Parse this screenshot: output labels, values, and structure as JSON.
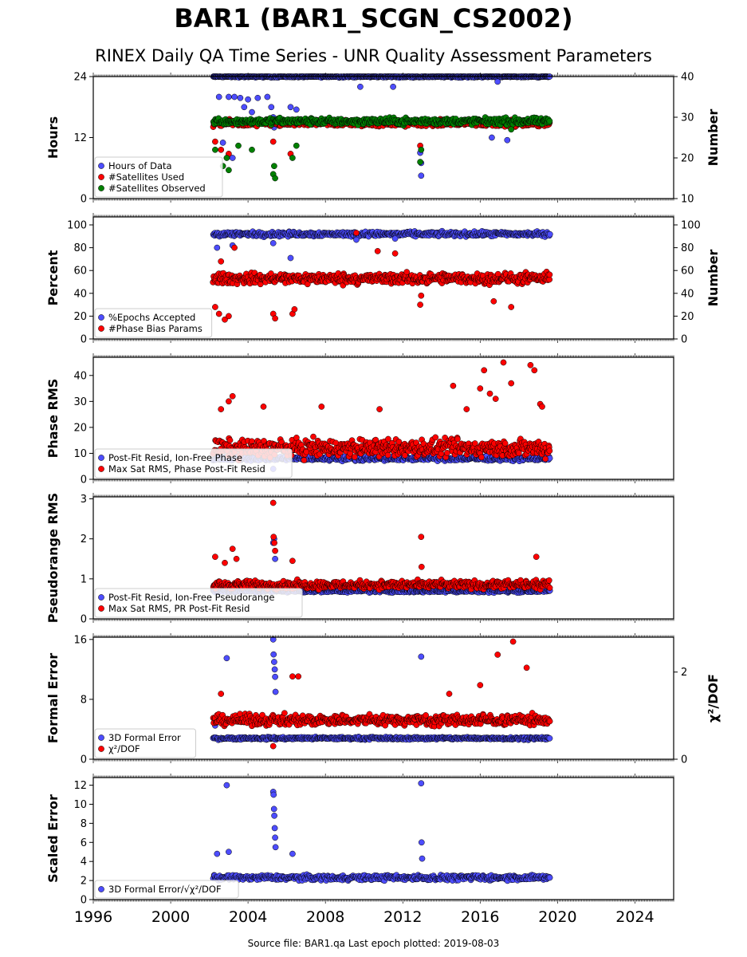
{
  "title": "BAR1 (BAR1_SCGN_CS2002)",
  "subtitle": "RINEX Daily QA Time Series - UNR Quality Assessment Parameters",
  "footer": "Source file: BAR1.qa Last epoch plotted: 2019-08-03",
  "colors": {
    "blue": "#4d4dff",
    "red": "#ff0000",
    "green": "#008000",
    "edge": "#000000"
  },
  "chart_data": [
    {
      "type": "scatter",
      "panel": "hours",
      "ylabel": "Hours",
      "ylabel_right": "Number",
      "ylim": [
        0,
        24
      ],
      "yticks": [
        "0",
        "12",
        "24"
      ],
      "ylim_right": [
        10,
        40
      ],
      "yticks_right": [
        "10",
        "20",
        "30",
        "40"
      ],
      "xlim": [
        1996,
        2026
      ],
      "x_range": [
        2002.2,
        2019.6
      ],
      "legend_placement": "lower-left",
      "series": [
        {
          "name": "Hours of Data",
          "axis": "left",
          "color": "#4d4dff",
          "typical": 24,
          "spread": 0.25,
          "outliers": [
            [
              2002.5,
              20
            ],
            [
              2003.0,
              20
            ],
            [
              2003.3,
              20
            ],
            [
              2003.6,
              19.8
            ],
            [
              2004.0,
              19.5
            ],
            [
              2004.5,
              19.8
            ],
            [
              2005.0,
              20
            ],
            [
              2005.2,
              18
            ],
            [
              2005.3,
              16
            ],
            [
              2005.35,
              14
            ],
            [
              2006.2,
              18
            ],
            [
              2006.5,
              17.5
            ],
            [
              2003.8,
              18
            ],
            [
              2004.2,
              17
            ],
            [
              2009.8,
              22
            ],
            [
              2011.5,
              22
            ],
            [
              2012.9,
              9
            ],
            [
              2012.95,
              7
            ],
            [
              2012.95,
              4.5
            ],
            [
              2016.6,
              12
            ],
            [
              2017.4,
              11.5
            ],
            [
              2016.9,
              23
            ],
            [
              2002.7,
              11
            ],
            [
              2003.2,
              8
            ]
          ]
        },
        {
          "name": "#Satellites Used",
          "axis": "right",
          "color": "#ff0000",
          "typical": 28.5,
          "spread": 1.2,
          "outliers": [
            [
              2002.3,
              24
            ],
            [
              2002.6,
              22
            ],
            [
              2003.0,
              21
            ],
            [
              2006.2,
              21
            ],
            [
              2017.6,
              28
            ],
            [
              2012.9,
              23
            ],
            [
              2005.3,
              24
            ]
          ]
        },
        {
          "name": "#Satellites Observed",
          "axis": "right",
          "color": "#008000",
          "typical": 29,
          "spread": 1.2,
          "outliers": [
            [
              2002.3,
              22
            ],
            [
              2002.7,
              18
            ],
            [
              2003.0,
              17
            ],
            [
              2003.5,
              23
            ],
            [
              2004.2,
              22
            ],
            [
              2005.3,
              16
            ],
            [
              2005.35,
              18
            ],
            [
              2005.4,
              15
            ],
            [
              2006.3,
              20
            ],
            [
              2006.5,
              23
            ],
            [
              2012.9,
              19
            ],
            [
              2012.95,
              22
            ],
            [
              2017.6,
              27
            ],
            [
              2002.9,
              20
            ]
          ]
        }
      ]
    },
    {
      "type": "scatter",
      "panel": "percent",
      "ylabel": "Percent",
      "ylabel_right": "Number",
      "ylim": [
        0,
        107
      ],
      "yticks": [
        "0",
        "20",
        "40",
        "60",
        "80",
        "100"
      ],
      "ylim_right": [
        0,
        107
      ],
      "yticks_right": [
        "0",
        "20",
        "40",
        "60",
        "80",
        "100"
      ],
      "xlim": [
        1996,
        2026
      ],
      "x_range": [
        2002.2,
        2019.6
      ],
      "legend_placement": "lower-left",
      "series": [
        {
          "name": "%Epochs Accepted",
          "axis": "left",
          "color": "#4d4dff",
          "typical": 92,
          "spread": 3,
          "outliers": [
            [
              2002.4,
              80
            ],
            [
              2003.2,
              82
            ],
            [
              2005.3,
              84
            ],
            [
              2006.2,
              71
            ],
            [
              2009.6,
              87
            ],
            [
              2011.6,
              88
            ]
          ]
        },
        {
          "name": "#Phase Bias Params",
          "axis": "right",
          "color": "#ff0000",
          "typical": 53,
          "spread": 7,
          "outliers": [
            [
              2002.3,
              28
            ],
            [
              2002.5,
              22
            ],
            [
              2002.8,
              17
            ],
            [
              2003.0,
              20
            ],
            [
              2005.3,
              22
            ],
            [
              2005.4,
              18
            ],
            [
              2006.3,
              22
            ],
            [
              2006.4,
              26
            ],
            [
              2012.9,
              30
            ],
            [
              2012.95,
              38
            ],
            [
              2016.7,
              33
            ],
            [
              2017.6,
              28
            ],
            [
              2009.6,
              93
            ],
            [
              2010.7,
              77
            ],
            [
              2011.6,
              75
            ],
            [
              2003.3,
              80
            ],
            [
              2002.6,
              68
            ]
          ]
        }
      ]
    },
    {
      "type": "scatter",
      "panel": "phase",
      "ylabel": "Phase RMS",
      "ylim": [
        0,
        47
      ],
      "yticks": [
        "0",
        "10",
        "20",
        "30",
        "40"
      ],
      "xlim": [
        1996,
        2026
      ],
      "x_range": [
        2002.2,
        2019.6
      ],
      "legend_placement": "lower-left",
      "series": [
        {
          "name": "Post-Fit Resid, Ion-Free Phase",
          "axis": "left",
          "color": "#4d4dff",
          "typical": 8,
          "spread": 1.2,
          "outliers": [
            [
              2005.3,
              4
            ]
          ]
        },
        {
          "name": "Max Sat RMS, Phase Post-Fit Resid",
          "axis": "left",
          "color": "#ff0000",
          "typical": 12,
          "spread": 5,
          "outliers": [
            [
              2003.2,
              32
            ],
            [
              2003.0,
              30
            ],
            [
              2002.6,
              27
            ],
            [
              2004.8,
              28
            ],
            [
              2007.8,
              28
            ],
            [
              2010.8,
              27
            ],
            [
              2014.6,
              36
            ],
            [
              2016.0,
              35
            ],
            [
              2016.2,
              42
            ],
            [
              2016.5,
              33
            ],
            [
              2016.8,
              31
            ],
            [
              2017.2,
              45
            ],
            [
              2017.6,
              37
            ],
            [
              2018.6,
              44
            ],
            [
              2018.8,
              42
            ],
            [
              2019.1,
              29
            ],
            [
              2019.2,
              28
            ],
            [
              2015.3,
              27
            ]
          ]
        }
      ]
    },
    {
      "type": "scatter",
      "panel": "pseudorange",
      "ylabel": "Pseudorange RMS",
      "ylim": [
        0,
        3.05
      ],
      "yticks": [
        "0",
        "1",
        "2",
        "3"
      ],
      "xlim": [
        1996,
        2026
      ],
      "x_range": [
        2002.2,
        2019.6
      ],
      "legend_placement": "lower-left",
      "series": [
        {
          "name": "Post-Fit Resid, Ion-Free Pseudorange",
          "axis": "left",
          "color": "#4d4dff",
          "typical": 0.7,
          "spread": 0.06,
          "outliers": [
            [
              2005.3,
              1.9
            ],
            [
              2005.35,
              2.0
            ],
            [
              2005.4,
              1.5
            ]
          ]
        },
        {
          "name": "Max Sat RMS, PR Post-Fit Resid",
          "axis": "left",
          "color": "#ff0000",
          "typical": 0.85,
          "spread": 0.15,
          "outliers": [
            [
              2005.3,
              2.9
            ],
            [
              2005.32,
              2.05
            ],
            [
              2005.36,
              1.9
            ],
            [
              2005.4,
              1.7
            ],
            [
              2002.3,
              1.55
            ],
            [
              2003.2,
              1.75
            ],
            [
              2003.4,
              1.5
            ],
            [
              2006.3,
              1.45
            ],
            [
              2012.95,
              2.05
            ],
            [
              2012.97,
              1.3
            ],
            [
              2018.9,
              1.55
            ],
            [
              2002.8,
              1.4
            ]
          ]
        }
      ]
    },
    {
      "type": "scatter",
      "panel": "formal",
      "ylabel": "Formal Error",
      "ylabel_right": "χ²/DOF",
      "ylim": [
        0,
        16.3
      ],
      "yticks": [
        "0",
        "8",
        "16"
      ],
      "ylim_right": [
        0,
        2.8
      ],
      "yticks_right": [
        "0",
        "2"
      ],
      "xlim": [
        1996,
        2026
      ],
      "x_range": [
        2002.2,
        2019.6
      ],
      "legend_placement": "lower-left",
      "series": [
        {
          "name": "3D Formal Error",
          "axis": "left",
          "color": "#4d4dff",
          "typical": 2.8,
          "spread": 0.25,
          "outliers": [
            [
              2002.9,
              13.5
            ],
            [
              2005.3,
              16
            ],
            [
              2005.32,
              14
            ],
            [
              2005.35,
              13
            ],
            [
              2005.38,
              12
            ],
            [
              2005.4,
              11
            ],
            [
              2005.42,
              9
            ],
            [
              2012.95,
              13.7
            ],
            [
              2002.3,
              4.5
            ]
          ]
        },
        {
          "name": "χ²/DOF",
          "axis": "right",
          "color": "#ff0000",
          "typical": 0.9,
          "spread": 0.18,
          "outliers": [
            [
              2017.7,
              2.7
            ],
            [
              2016.9,
              2.4
            ],
            [
              2018.4,
              2.1
            ],
            [
              2006.3,
              1.9
            ],
            [
              2006.6,
              1.9
            ],
            [
              2002.6,
              1.5
            ],
            [
              2005.3,
              0.3
            ],
            [
              2014.4,
              1.5
            ],
            [
              2016.0,
              1.7
            ]
          ]
        }
      ]
    },
    {
      "type": "scatter",
      "panel": "scaled",
      "ylabel": "Scaled Error",
      "ylim": [
        0,
        12.8
      ],
      "yticks": [
        "0",
        "2",
        "4",
        "6",
        "8",
        "10",
        "12"
      ],
      "xlim": [
        1996,
        2026
      ],
      "xticks": [
        "1996",
        "2000",
        "2004",
        "2008",
        "2012",
        "2016",
        "2020",
        "2024"
      ],
      "x_range": [
        2002.2,
        2019.6
      ],
      "legend_placement": "lower-left",
      "series": [
        {
          "name": "3D Formal Error/√χ²/DOF",
          "axis": "left",
          "color": "#4d4dff",
          "typical": 2.3,
          "spread": 0.4,
          "outliers": [
            [
              2002.9,
              12
            ],
            [
              2005.3,
              11.3
            ],
            [
              2005.32,
              11
            ],
            [
              2005.34,
              9.5
            ],
            [
              2005.36,
              8.8
            ],
            [
              2005.38,
              7.5
            ],
            [
              2005.4,
              6.5
            ],
            [
              2005.42,
              5.5
            ],
            [
              2012.95,
              12.2
            ],
            [
              2012.97,
              6
            ],
            [
              2013.0,
              4.3
            ],
            [
              2002.4,
              4.8
            ],
            [
              2003.0,
              5
            ],
            [
              2006.3,
              4.8
            ]
          ]
        }
      ]
    }
  ]
}
